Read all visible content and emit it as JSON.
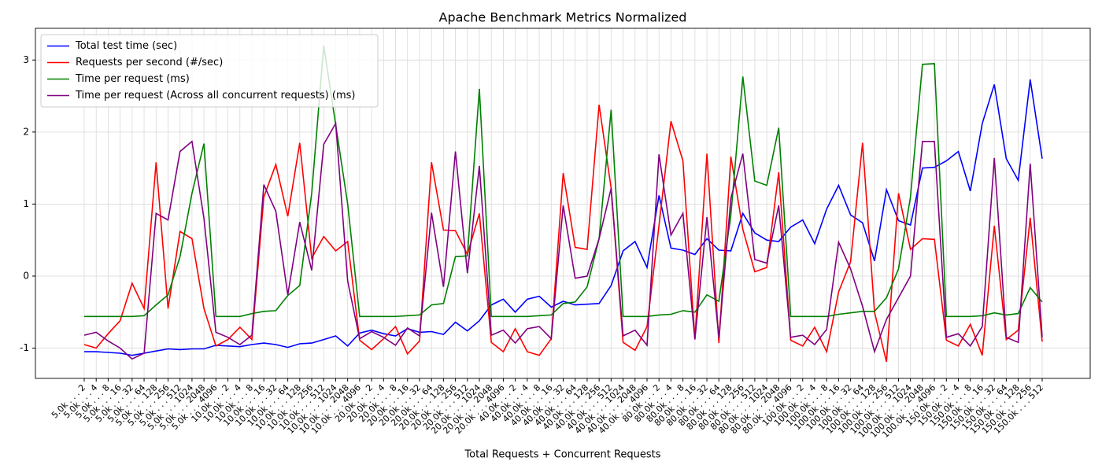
{
  "chart_data": {
    "type": "line",
    "title": "Apache Benchmark Metrics Normalized",
    "xlabel": "Total Requests + Concurrent Requests",
    "categories": [
      "5.0k . . . 2",
      "5.0k . . . 4",
      "5.0k . . . 8",
      "5.0k . . . 16",
      "5.0k . . . 32",
      "5.0k . . . 64",
      "5.0k . . . 128",
      "5.0k . . . 256",
      "5.0k . . . 512",
      "5.0k . . . 1024",
      "5.0k . . . 2048",
      "5.0k . . . 4096",
      "10.0k . . . 2",
      "10.0k . . . 4",
      "10.0k . . . 8",
      "10.0k . . . 16",
      "10.0k . . . 32",
      "10.0k . . . 64",
      "10.0k . . . 128",
      "10.0k . . . 256",
      "10.0k . . . 512",
      "10.0k . . . 1024",
      "10.0k . . . 2048",
      "10.0k . . . 4096",
      "20.0k . . . 2",
      "20.0k . . . 4",
      "20.0k . . . 8",
      "20.0k . . . 16",
      "20.0k . . . 32",
      "20.0k . . . 64",
      "20.0k . . . 128",
      "20.0k . . . 256",
      "20.0k . . . 512",
      "20.0k . . . 1024",
      "20.0k . . . 2048",
      "20.0k . . . 4096",
      "40.0k . . . 2",
      "40.0k . . . 4",
      "40.0k . . . 8",
      "40.0k . . . 16",
      "40.0k . . . 32",
      "40.0k . . . 64",
      "40.0k . . . 128",
      "40.0k . . . 256",
      "40.0k . . . 512",
      "40.0k . . . 1024",
      "40.0k . . . 2048",
      "40.0k . . . 4096",
      "80.0k . . . 2",
      "80.0k . . . 4",
      "80.0k . . . 8",
      "80.0k . . . 16",
      "80.0k . . . 32",
      "80.0k . . . 64",
      "80.0k . . . 128",
      "80.0k . . . 256",
      "80.0k . . . 512",
      "80.0k . . . 1024",
      "80.0k . . . 2048",
      "80.0k . . . 4096",
      "100.0k . . . 2",
      "100.0k . . . 4",
      "100.0k . . . 8",
      "100.0k . . . 16",
      "100.0k . . . 32",
      "100.0k . . . 64",
      "100.0k . . . 128",
      "100.0k . . . 256",
      "100.0k . . . 512",
      "100.0k . . . 1024",
      "100.0k . . . 2048",
      "100.0k . . . 4096",
      "150.0k . . . 2",
      "150.0k . . . 4",
      "150.0k . . . 8",
      "150.0k . . . 16",
      "150.0k . . . 32",
      "150.0k . . . 64",
      "150.0k . . . 128",
      "150.0k . . . 256",
      "150.0k . . . 512"
    ],
    "series": [
      {
        "name": "Total test time (sec)",
        "color": "#0000ff",
        "values": [
          -1.05,
          -1.05,
          -1.06,
          -1.07,
          -1.1,
          -1.07,
          -1.04,
          -1.01,
          -1.02,
          -1.01,
          -1.01,
          -0.96,
          -0.97,
          -0.98,
          -0.95,
          -0.93,
          -0.95,
          -0.99,
          -0.94,
          -0.93,
          -0.88,
          -0.83,
          -0.97,
          -0.79,
          -0.75,
          -0.8,
          -0.83,
          -0.73,
          -0.78,
          -0.77,
          -0.81,
          -0.64,
          -0.76,
          -0.62,
          -0.4,
          -0.32,
          -0.5,
          -0.32,
          -0.28,
          -0.43,
          -0.35,
          -0.4,
          -0.39,
          -0.38,
          -0.13,
          0.35,
          0.48,
          0.12,
          1.12,
          0.39,
          0.36,
          0.3,
          0.52,
          0.36,
          0.35,
          0.87,
          0.6,
          0.5,
          0.48,
          0.68,
          0.78,
          0.45,
          0.93,
          1.26,
          0.85,
          0.74,
          0.21,
          1.2,
          0.77,
          0.71,
          1.5,
          1.51,
          1.6,
          1.73,
          1.18,
          2.12,
          2.66,
          1.63,
          1.33,
          2.73,
          1.63
        ]
      },
      {
        "name": "Requests per second (#/sec)",
        "color": "#ff0000",
        "values": [
          -0.95,
          -1.0,
          -0.8,
          -0.62,
          -0.1,
          -0.45,
          1.58,
          -0.45,
          0.62,
          0.52,
          -0.45,
          -0.97,
          -0.88,
          -0.71,
          -0.88,
          1.1,
          1.55,
          0.83,
          1.85,
          0.25,
          0.55,
          0.35,
          0.48,
          -0.89,
          -1.02,
          -0.87,
          -0.7,
          -1.08,
          -0.9,
          1.58,
          0.64,
          0.63,
          0.3,
          0.87,
          -0.92,
          -1.05,
          -0.73,
          -1.05,
          -1.1,
          -0.87,
          1.43,
          0.4,
          0.37,
          2.38,
          1.22,
          -0.92,
          -1.03,
          -0.7,
          0.7,
          2.15,
          1.6,
          -0.87,
          1.7,
          -0.93,
          1.66,
          0.65,
          0.06,
          0.12,
          1.44,
          -0.89,
          -0.97,
          -0.71,
          -1.05,
          -0.22,
          0.2,
          1.85,
          -0.5,
          -1.19,
          1.15,
          0.37,
          0.52,
          0.51,
          -0.89,
          -0.97,
          -0.67,
          -1.1,
          0.7,
          -0.88,
          -0.75,
          0.81,
          -0.91
        ]
      },
      {
        "name": "Time per request (ms)",
        "color": "#008000",
        "values": [
          -0.56,
          -0.56,
          -0.56,
          -0.56,
          -0.56,
          -0.55,
          -0.4,
          -0.26,
          0.27,
          1.15,
          1.84,
          -0.56,
          -0.56,
          -0.56,
          -0.52,
          -0.49,
          -0.48,
          -0.27,
          -0.13,
          1.15,
          3.2,
          2.1,
          1.0,
          -0.56,
          -0.56,
          -0.56,
          -0.56,
          -0.55,
          -0.54,
          -0.4,
          -0.38,
          0.27,
          0.28,
          2.6,
          -0.56,
          -0.56,
          -0.56,
          -0.56,
          -0.55,
          -0.54,
          -0.38,
          -0.36,
          -0.15,
          0.52,
          2.31,
          -0.56,
          -0.56,
          -0.56,
          -0.54,
          -0.53,
          -0.48,
          -0.5,
          -0.26,
          -0.35,
          0.85,
          2.77,
          1.32,
          1.26,
          2.06,
          -0.56,
          -0.56,
          -0.56,
          -0.56,
          -0.53,
          -0.51,
          -0.49,
          -0.49,
          -0.3,
          0.1,
          1.1,
          2.94,
          2.95,
          -0.56,
          -0.56,
          -0.56,
          -0.55,
          -0.51,
          -0.54,
          -0.52,
          -0.16,
          -0.36
        ]
      },
      {
        "name": "Time per request (Across all concurrent requests) (ms)",
        "color": "#800080",
        "values": [
          -0.82,
          -0.78,
          -0.9,
          -1.0,
          -1.15,
          -1.07,
          0.87,
          0.78,
          1.73,
          1.87,
          0.8,
          -0.78,
          -0.85,
          -0.95,
          -0.82,
          1.27,
          0.9,
          -0.26,
          0.75,
          0.08,
          1.83,
          2.12,
          -0.07,
          -0.87,
          -0.77,
          -0.85,
          -0.96,
          -0.72,
          -0.83,
          0.88,
          -0.15,
          1.73,
          0.04,
          1.53,
          -0.82,
          -0.75,
          -0.93,
          -0.73,
          -0.7,
          -0.87,
          0.98,
          -0.03,
          0.0,
          0.52,
          1.22,
          -0.83,
          -0.75,
          -0.96,
          1.69,
          0.57,
          0.87,
          -0.88,
          0.82,
          -0.86,
          1.08,
          1.7,
          0.23,
          0.18,
          0.98,
          -0.85,
          -0.82,
          -0.95,
          -0.74,
          0.47,
          0.1,
          -0.42,
          -1.05,
          -0.6,
          -0.3,
          0.0,
          1.87,
          1.87,
          -0.85,
          -0.8,
          -0.97,
          -0.7,
          1.64,
          -0.85,
          -0.92,
          1.56,
          -0.85
        ]
      }
    ],
    "ylim": [
      -1.42,
      3.44
    ],
    "yticks": [
      -1,
      0,
      1,
      2,
      3
    ],
    "grid": true,
    "legend": "upper left"
  }
}
